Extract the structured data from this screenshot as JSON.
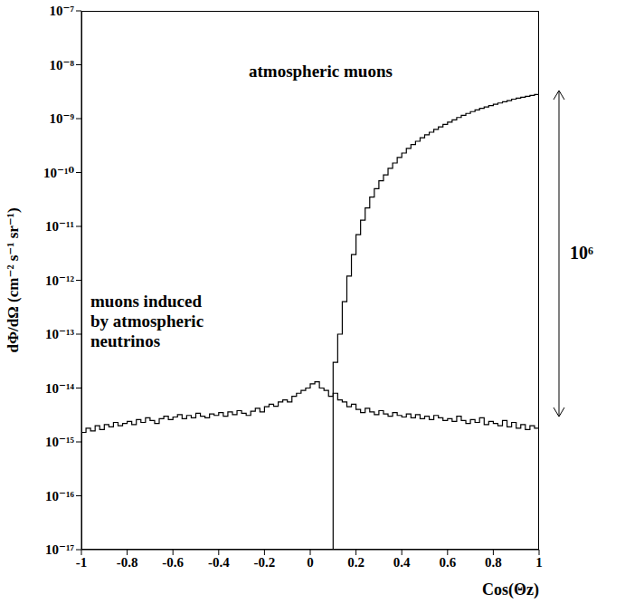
{
  "chart_data": {
    "type": "histogram",
    "y_label": "dΦ/dΩ (cm⁻² s⁻¹ sr⁻¹)",
    "x_label": "Cos(Θz)",
    "log": "y",
    "bins": [
      -1,
      -0.98,
      -0.96,
      -0.94,
      -0.92,
      -0.9,
      -0.88,
      -0.86,
      -0.84,
      -0.82,
      -0.8,
      -0.78,
      -0.76,
      -0.74,
      -0.72,
      -0.7,
      -0.68,
      -0.66,
      -0.64,
      -0.62,
      -0.6,
      -0.58,
      -0.56,
      -0.54,
      -0.52,
      -0.5,
      -0.48,
      -0.46,
      -0.44,
      -0.42,
      -0.4,
      -0.38,
      -0.36,
      -0.34,
      -0.32,
      -0.3,
      -0.28,
      -0.26,
      -0.24,
      -0.22,
      -0.2,
      -0.18,
      -0.16,
      -0.14,
      -0.12,
      -0.1,
      -0.08,
      -0.06,
      -0.04,
      -0.02,
      0,
      0.02,
      0.04,
      0.06,
      0.08,
      0.1,
      0.12,
      0.14,
      0.16,
      0.18,
      0.2,
      0.22,
      0.24,
      0.26,
      0.28,
      0.3,
      0.32,
      0.34,
      0.36,
      0.38,
      0.4,
      0.42,
      0.44,
      0.46,
      0.48,
      0.5,
      0.52,
      0.54,
      0.56,
      0.58,
      0.6,
      0.62,
      0.64,
      0.66,
      0.68,
      0.7,
      0.72,
      0.74,
      0.76,
      0.78,
      0.8,
      0.82,
      0.84,
      0.86,
      0.88,
      0.9,
      0.92,
      0.94,
      0.96,
      0.98,
      1
    ],
    "series": [
      {
        "name": "atmospheric muons",
        "color": "#000000",
        "values": [
          null,
          null,
          null,
          null,
          null,
          null,
          null,
          null,
          null,
          null,
          null,
          null,
          null,
          null,
          null,
          null,
          null,
          null,
          null,
          null,
          null,
          null,
          null,
          null,
          null,
          null,
          null,
          null,
          null,
          null,
          null,
          null,
          null,
          null,
          null,
          null,
          null,
          null,
          null,
          null,
          null,
          null,
          null,
          null,
          null,
          null,
          null,
          null,
          null,
          null,
          null,
          null,
          null,
          null,
          null,
          3e-14,
          1e-13,
          4e-13,
          1.2e-12,
          3e-12,
          7e-12,
          1.3e-11,
          2.2e-11,
          3.5e-11,
          5e-11,
          7e-11,
          9e-11,
          1.2e-10,
          1.5e-10,
          1.9e-10,
          2.3e-10,
          2.8e-10,
          3.3e-10,
          3.8e-10,
          4.4e-10,
          5e-10,
          5.6e-10,
          6.3e-10,
          7e-10,
          7.8e-10,
          8.6e-10,
          9.5e-10,
          1.05e-09,
          1.15e-09,
          1.25e-09,
          1.35e-09,
          1.45e-09,
          1.55e-09,
          1.65e-09,
          1.75e-09,
          1.85e-09,
          1.95e-09,
          2.05e-09,
          2.15e-09,
          2.3e-09,
          2.4e-09,
          2.5e-09,
          2.6e-09,
          2.7e-09,
          2.8e-09
        ]
      },
      {
        "name": "muons induced by atmospheric neutrinos",
        "color": "#000000",
        "values": [
          1.5e-15,
          1.8e-15,
          1.6e-15,
          2e-15,
          1.7e-15,
          2.1e-15,
          1.9e-15,
          2.3e-15,
          2e-15,
          2.2e-15,
          2.4e-15,
          2.1e-15,
          2.6e-15,
          2.3e-15,
          2.8e-15,
          2.5e-15,
          2.2e-15,
          2.7e-15,
          3e-15,
          2.6e-15,
          2.9e-15,
          3.2e-15,
          2.7e-15,
          3.1e-15,
          2.8e-15,
          3.4e-15,
          3e-15,
          2.8e-15,
          3.3e-15,
          3.1e-15,
          3.5e-15,
          3e-15,
          3.6e-15,
          3.2e-15,
          3.8e-15,
          3.4e-15,
          3.1e-15,
          3.7e-15,
          4.2e-15,
          3.6e-15,
          4.5e-15,
          5e-15,
          4.6e-15,
          5.5e-15,
          6e-15,
          5.5e-15,
          7e-15,
          8e-15,
          9e-15,
          1e-14,
          1.2e-14,
          1.3e-14,
          1e-14,
          9e-15,
          7e-15,
          8e-15,
          6e-15,
          5.5e-15,
          4.5e-15,
          5e-15,
          4e-15,
          3.5e-15,
          4.2e-15,
          3.6e-15,
          3.2e-15,
          3.8e-15,
          3.3e-15,
          3e-15,
          3.5e-15,
          3.1e-15,
          2.9e-15,
          3.3e-15,
          2.8e-15,
          3.2e-15,
          2.7e-15,
          3e-15,
          2.6e-15,
          3.1e-15,
          2.8e-15,
          2.5e-15,
          2.7e-15,
          2.4e-15,
          3e-15,
          2.5e-15,
          2.2e-15,
          2.6e-15,
          2.3e-15,
          2.8e-15,
          2.1e-15,
          2.4e-15,
          2.2e-15,
          2e-15,
          2.5e-15,
          1.9e-15,
          2.3e-15,
          1.8e-15,
          2.1e-15,
          1.7e-15,
          2e-15,
          1.8e-15
        ]
      }
    ],
    "xlim": [
      -1,
      1
    ],
    "xticks": [
      -1,
      -0.8,
      -0.6,
      -0.4,
      -0.2,
      0,
      0.2,
      0.4,
      0.6,
      0.8,
      1
    ],
    "ylim": [
      1e-17,
      1e-07
    ],
    "yticks": [
      {
        "value": 1e-17,
        "label": "10⁻¹⁷"
      },
      {
        "value": 1e-16,
        "label": "10⁻¹⁶"
      },
      {
        "value": 1e-15,
        "label": "10⁻¹⁵"
      },
      {
        "value": 1e-14,
        "label": "10⁻¹⁴"
      },
      {
        "value": 1e-13,
        "label": "10⁻¹³"
      },
      {
        "value": 1e-12,
        "label": "10⁻¹²"
      },
      {
        "value": 1e-11,
        "label": "10⁻¹¹"
      },
      {
        "value": 1e-10,
        "label": "10⁻¹⁰"
      },
      {
        "value": 1e-09,
        "label": "10⁻⁹"
      },
      {
        "value": 1e-08,
        "label": "10⁻⁸"
      },
      {
        "value": 1e-07,
        "label": "10⁻⁷"
      }
    ],
    "annotations": [
      {
        "text": "atmospheric muons"
      },
      {
        "text": [
          "muons induced",
          "by atmospheric",
          "neutrinos"
        ]
      },
      {
        "text": "10⁶"
      }
    ]
  }
}
